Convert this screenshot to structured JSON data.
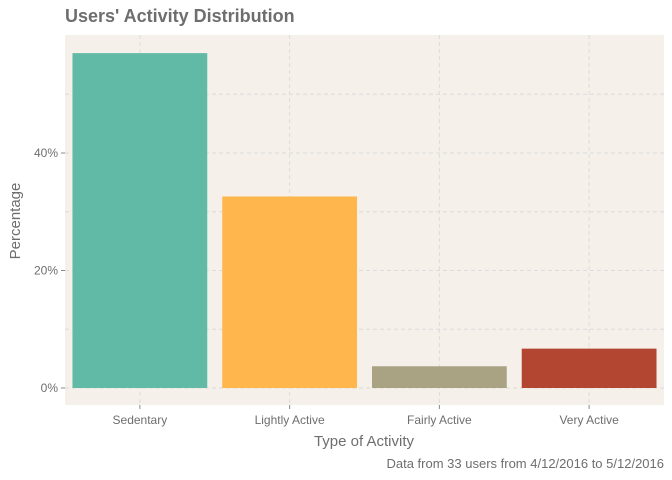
{
  "chart_data": {
    "type": "bar",
    "title": "Users' Activity Distribution",
    "xlabel": "Type of Activity",
    "ylabel": "Percentage",
    "caption": "Data from 33 users from 4/12/2016 to 5/12/2016",
    "categories": [
      "Sedentary",
      "Lightly Active",
      "Fairly Active",
      "Very Active"
    ],
    "values": [
      57.0,
      32.6,
      3.7,
      6.7
    ],
    "colors": [
      "#60BAA5",
      "#FFB74D",
      "#A9A283",
      "#B24631"
    ],
    "ylim": [
      0,
      60
    ],
    "yticks": [
      0,
      20,
      40
    ],
    "ytick_labels": [
      "0%",
      "20%",
      "40%"
    ],
    "grid": true,
    "panel_color": "#F5F0EA"
  }
}
